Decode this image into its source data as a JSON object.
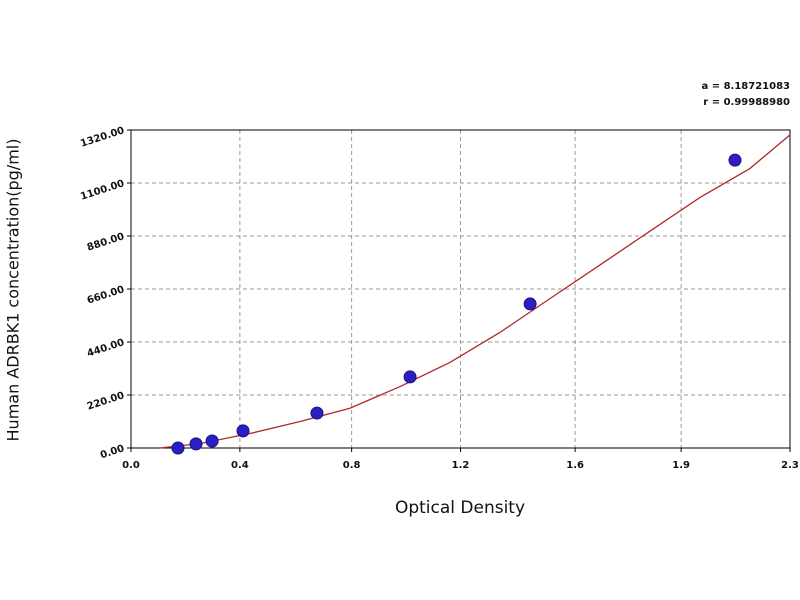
{
  "chart_data": {
    "type": "scatter",
    "xlabel": "Optical Density",
    "ylabel": "Human ADRBK1 concentration(pg/ml)",
    "annotations": [
      "a = 8.18721083",
      "r = 0.99988980"
    ],
    "xlim": [
      0,
      2.3
    ],
    "xticks": [
      {
        "value": 0,
        "label": "0.0"
      },
      {
        "value": 0.38,
        "label": "0.4"
      },
      {
        "value": 0.77,
        "label": "0.8"
      },
      {
        "value": 1.15,
        "label": "1.2"
      },
      {
        "value": 1.55,
        "label": "1.6"
      },
      {
        "value": 1.92,
        "label": "1.9"
      },
      {
        "value": 2.3,
        "label": "2.3"
      }
    ],
    "ylim": [
      0,
      1320
    ],
    "yticks": [
      {
        "value": 0,
        "label": "0.00"
      },
      {
        "value": 220,
        "label": "220.00"
      },
      {
        "value": 440,
        "label": "440.00"
      },
      {
        "value": 660,
        "label": "660.00"
      },
      {
        "value": 880,
        "label": "880.00"
      },
      {
        "value": 1100,
        "label": "1100.00"
      },
      {
        "value": 1320,
        "label": "1320.00"
      }
    ],
    "grid": true,
    "series": [
      {
        "kind": "points",
        "color": "#2b1fc4",
        "x": [
          0.164,
          0.227,
          0.283,
          0.391,
          0.649,
          0.974,
          1.393,
          2.108
        ],
        "values": [
          0,
          17,
          29,
          71,
          145,
          295,
          598,
          1195
        ]
      },
      {
        "kind": "curve",
        "color": "#b02a2a",
        "x": [
          0.1,
          0.24,
          0.415,
          0.59,
          0.764,
          0.939,
          1.113,
          1.288,
          1.462,
          1.637,
          1.811,
          1.986,
          2.16,
          2.3
        ],
        "values": [
          0,
          18,
          60,
          110,
          165,
          255,
          355,
          480,
          620,
          760,
          900,
          1040,
          1160,
          1300
        ]
      }
    ]
  }
}
